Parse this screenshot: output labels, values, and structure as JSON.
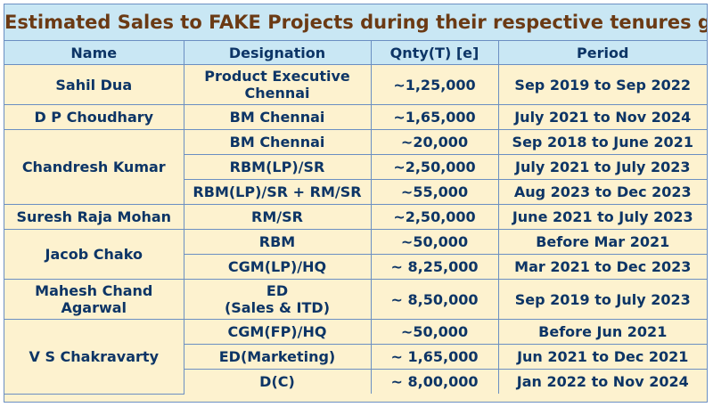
{
  "title": "Estimated Sales to FAKE Projects during their respective tenures given",
  "headers": {
    "name": "Name",
    "designation": "Designation",
    "qnty": "Qnty(T) [e]",
    "period": "Period"
  },
  "rows": [
    {
      "name": "Sahil Dua",
      "designation": "Product Executive Chennai",
      "qnty": "~1,25,000",
      "period": "Sep 2019 to Sep 2022"
    },
    {
      "name": "D P Choudhary",
      "designation": "BM Chennai",
      "qnty": "~1,65,000",
      "period": "July 2021 to Nov 2024"
    },
    {
      "name": "Chandresh Kumar",
      "designation": "BM Chennai",
      "qnty": "~20,000",
      "period": "Sep 2018 to June 2021"
    },
    {
      "designation": "RBM(LP)/SR",
      "qnty": "~2,50,000",
      "period": "July 2021 to July 2023"
    },
    {
      "designation": "RBM(LP)/SR + RM/SR",
      "qnty": "~55,000",
      "period": "Aug 2023 to Dec 2023"
    },
    {
      "name": "Suresh Raja Mohan",
      "designation": "RM/SR",
      "qnty": "~2,50,000",
      "period": "June 2021 to July 2023"
    },
    {
      "name": "Jacob Chako",
      "designation": "RBM",
      "qnty": "~50,000",
      "period": "Before Mar 2021"
    },
    {
      "designation": "CGM(LP)/HQ",
      "qnty": "~ 8,25,000",
      "period": "Mar 2021 to Dec 2023"
    },
    {
      "name": "Mahesh Chand Agarwal",
      "designation_line1": "ED",
      "designation_line2": "(Sales & ITD)",
      "qnty": "~ 8,50,000",
      "period": "Sep 2019 to July 2023"
    },
    {
      "name": "V S Chakravarty",
      "designation": "CGM(FP)/HQ",
      "qnty": "~50,000",
      "period": "Before Jun 2021"
    },
    {
      "designation": "ED(Marketing)",
      "qnty": "~ 1,65,000",
      "period": "Jun 2021 to Dec 2021"
    },
    {
      "designation": "D(C)",
      "qnty": "~ 8,00,000",
      "period": "Jan 2022 to Nov 2024"
    }
  ]
}
